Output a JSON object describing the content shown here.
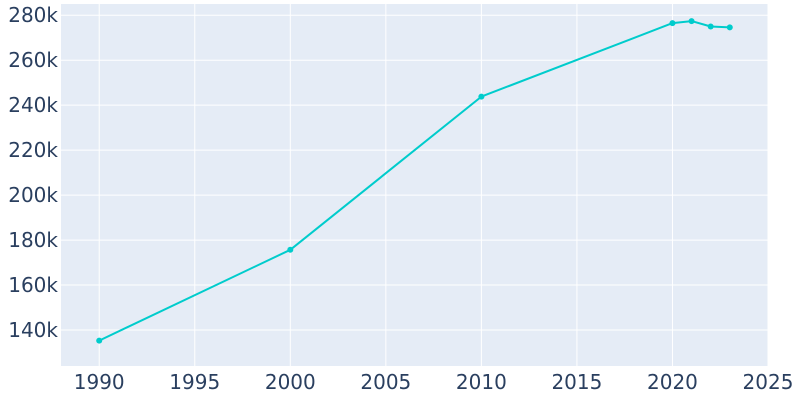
{
  "chart_data": {
    "type": "line",
    "title": "",
    "xlabel": "",
    "ylabel": "",
    "x": [
      1990,
      2000,
      2010,
      2020,
      2021,
      2022,
      2023
    ],
    "series": [
      {
        "values": [
          135300,
          175700,
          243800,
          276500,
          277400,
          275000,
          274600
        ]
      }
    ],
    "xlim": [
      1988,
      2025
    ],
    "ylim": [
      124000,
      285000
    ],
    "xticks": [
      1990,
      1995,
      2000,
      2005,
      2010,
      2015,
      2020,
      2025
    ],
    "xtick_labels": [
      "1990",
      "1995",
      "2000",
      "2005",
      "2010",
      "2015",
      "2020",
      "2025"
    ],
    "yticks": [
      140000,
      160000,
      180000,
      200000,
      220000,
      240000,
      260000,
      280000
    ],
    "ytick_labels": [
      "140k",
      "160k",
      "180k",
      "200k",
      "220k",
      "240k",
      "260k",
      "280k"
    ],
    "grid": true,
    "colors": {
      "line": "#00cccc",
      "plot_bg": "#e5ecf6",
      "grid": "#ffffff",
      "tick_text": "#2a3f5f"
    }
  }
}
